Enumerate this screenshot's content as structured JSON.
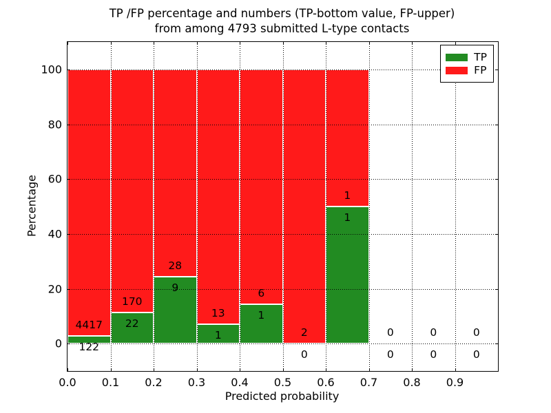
{
  "chart_data": {
    "type": "bar",
    "stacked": true,
    "title_lines": [
      "TP /FP percentage and numbers (TP-bottom value, FP-upper)",
      "from among 4793 submitted L-type contacts"
    ],
    "xlabel": "Predicted probability",
    "ylabel": "Percentage",
    "xlim": [
      0.0,
      1.0
    ],
    "ylim": [
      -10,
      110
    ],
    "xtick_values": [
      0.0,
      0.1,
      0.2,
      0.3,
      0.4,
      0.5,
      0.6,
      0.7,
      0.8,
      0.9
    ],
    "xtick_labels": [
      "0.0",
      "0.1",
      "0.2",
      "0.3",
      "0.4",
      "0.5",
      "0.6",
      "0.7",
      "0.8",
      "0.9"
    ],
    "ytick_values": [
      0,
      20,
      40,
      60,
      80,
      100
    ],
    "ytick_labels": [
      "0",
      "20",
      "40",
      "60",
      "80",
      "100"
    ],
    "grid": "dotted, drawn above bars",
    "legend": {
      "position": "upper right",
      "entries": [
        {
          "label": "TP",
          "color": "#228b22"
        },
        {
          "label": "FP",
          "color": "#ff1a1a"
        }
      ]
    },
    "total_submitted": 4793,
    "bins": [
      {
        "x_start": 0.0,
        "x_end": 0.1,
        "tp": 122,
        "fp": 4417,
        "tp_pct": 2.69
      },
      {
        "x_start": 0.1,
        "x_end": 0.2,
        "tp": 22,
        "fp": 170,
        "tp_pct": 11.46
      },
      {
        "x_start": 0.2,
        "x_end": 0.3,
        "tp": 9,
        "fp": 28,
        "tp_pct": 24.32
      },
      {
        "x_start": 0.3,
        "x_end": 0.4,
        "tp": 1,
        "fp": 13,
        "tp_pct": 7.14
      },
      {
        "x_start": 0.4,
        "x_end": 0.5,
        "tp": 1,
        "fp": 6,
        "tp_pct": 14.29
      },
      {
        "x_start": 0.5,
        "x_end": 0.6,
        "tp": 0,
        "fp": 2,
        "tp_pct": 0
      },
      {
        "x_start": 0.6,
        "x_end": 0.7,
        "tp": 1,
        "fp": 1,
        "tp_pct": 50
      },
      {
        "x_start": 0.7,
        "x_end": 0.8,
        "tp": 0,
        "fp": 0,
        "tp_pct": 0
      },
      {
        "x_start": 0.8,
        "x_end": 0.9,
        "tp": 0,
        "fp": 0,
        "tp_pct": 0
      },
      {
        "x_start": 0.9,
        "x_end": 1.0,
        "tp": 0,
        "fp": 0,
        "tp_pct": 0
      }
    ],
    "colors": {
      "tp": "#228b22",
      "fp": "#ff1a1a",
      "grid": "#000000",
      "bar_edge": "#ffffff",
      "frame": "#000000"
    }
  }
}
